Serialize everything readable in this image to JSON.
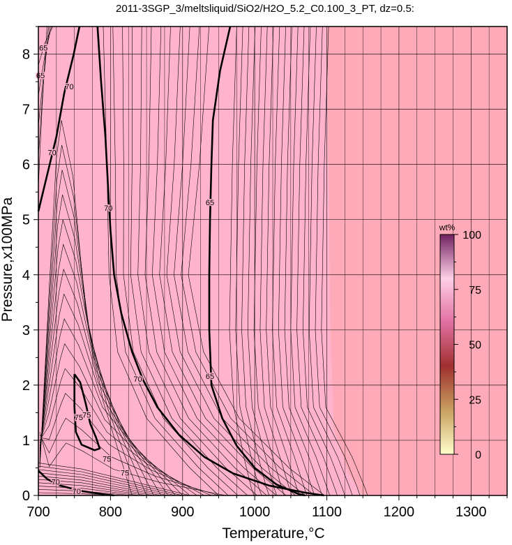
{
  "chart_data": {
    "type": "heatmap",
    "title": "2011-3SGP_3/meltsliquid/SiO2/H2O_5.2_C0.100_3_PT, dz=0.5:",
    "xlabel": "Temperature,°C",
    "ylabel": "Pressure,x100MPa",
    "xlim": [
      700,
      1350
    ],
    "ylim": [
      0,
      8.5
    ],
    "x_ticks": [
      "700",
      "800",
      "900",
      "1000",
      "1100",
      "1200",
      "1300"
    ],
    "y_ticks": [
      "0",
      "1",
      "2",
      "3",
      "4",
      "5",
      "6",
      "7",
      "8"
    ],
    "grid": true,
    "colors": {
      "field_high": "#ffb3cc",
      "field_low": "#ffaab8",
      "contour": "#000000",
      "grid": "#000000"
    },
    "colorbar": {
      "label": "wt%",
      "range": [
        0,
        100
      ],
      "ticks": [
        "0",
        "25",
        "50",
        "75",
        "100"
      ],
      "stops": [
        "#ffffcc",
        "#c8a060",
        "#a03030",
        "#e070a0",
        "#ffd0e8",
        "#702060"
      ]
    },
    "contour_labels": [
      {
        "text": "65",
        "x": 707,
        "y": 8.1
      },
      {
        "text": "65",
        "x": 703,
        "y": 7.6
      },
      {
        "text": "70",
        "x": 743,
        "y": 7.4
      },
      {
        "text": "70",
        "x": 719,
        "y": 6.2
      },
      {
        "text": "70",
        "x": 797,
        "y": 5.2
      },
      {
        "text": "65",
        "x": 938,
        "y": 5.3
      },
      {
        "text": "70",
        "x": 838,
        "y": 2.1
      },
      {
        "text": "65",
        "x": 938,
        "y": 2.15
      },
      {
        "text": "75",
        "x": 756,
        "y": 1.4
      },
      {
        "text": "75",
        "x": 767,
        "y": 1.45
      },
      {
        "text": "75",
        "x": 795,
        "y": 0.65
      },
      {
        "text": "75",
        "x": 820,
        "y": 0.4
      },
      {
        "text": "70",
        "x": 724,
        "y": 0.23
      },
      {
        "text": "70",
        "x": 753,
        "y": 0.06
      }
    ],
    "bold_contours": [
      {
        "level": 70,
        "points": [
          [
            700,
            5.15
          ],
          [
            712,
            5.8
          ],
          [
            725,
            6.5
          ],
          [
            736,
            7.3
          ],
          [
            749,
            8.0
          ],
          [
            757,
            8.5
          ]
        ]
      },
      {
        "level": 70,
        "points": [
          [
            782,
            8.5
          ],
          [
            787,
            7.5
          ],
          [
            793,
            6.5
          ],
          [
            797,
            5.5
          ],
          [
            800,
            4.8
          ],
          [
            805,
            4.0
          ],
          [
            815,
            3.3
          ],
          [
            830,
            2.6
          ],
          [
            845,
            2.1
          ],
          [
            865,
            1.6
          ],
          [
            895,
            1.1
          ],
          [
            930,
            0.7
          ],
          [
            970,
            0.4
          ],
          [
            1020,
            0.18
          ],
          [
            1070,
            0.05
          ],
          [
            1096,
            0.0
          ]
        ]
      },
      {
        "level": 65,
        "points": [
          [
            966,
            8.5
          ],
          [
            952,
            7.7
          ],
          [
            942,
            6.8
          ],
          [
            940,
            6.0
          ],
          [
            938,
            5.0
          ],
          [
            937,
            4.0
          ],
          [
            937,
            3.0
          ],
          [
            940,
            2.0
          ],
          [
            955,
            1.4
          ],
          [
            975,
            0.9
          ],
          [
            1000,
            0.5
          ],
          [
            1030,
            0.2
          ],
          [
            1060,
            0.03
          ],
          [
            1070,
            0.0
          ]
        ]
      },
      {
        "level": 75,
        "points": [
          [
            750,
            2.2
          ],
          [
            758,
            2.05
          ],
          [
            766,
            1.65
          ],
          [
            772,
            1.3
          ],
          [
            780,
            1.05
          ],
          [
            785,
            0.85
          ],
          [
            778,
            0.82
          ],
          [
            760,
            0.92
          ],
          [
            752,
            1.15
          ],
          [
            750,
            1.6
          ],
          [
            750,
            2.2
          ]
        ]
      },
      {
        "level": 70,
        "points": [
          [
            700,
            0.45
          ],
          [
            712,
            0.3
          ],
          [
            730,
            0.18
          ],
          [
            760,
            0.08
          ],
          [
            790,
            0.02
          ],
          [
            805,
            0.0
          ]
        ]
      }
    ]
  }
}
